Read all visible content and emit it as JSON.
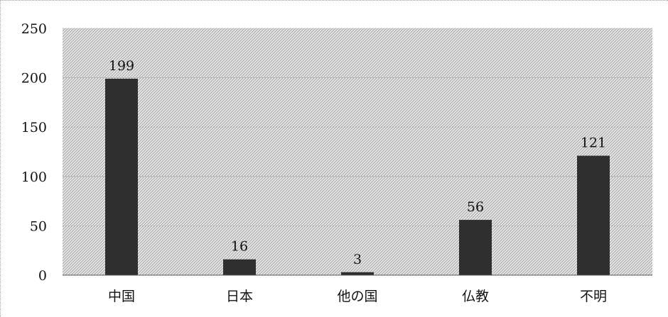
{
  "chart_data": {
    "type": "bar",
    "categories": [
      "中国",
      "日本",
      "他の国",
      "仏教",
      "不明"
    ],
    "values": [
      199,
      16,
      3,
      56,
      121
    ],
    "data_labels": [
      "199",
      "16",
      "3",
      "56",
      "121"
    ],
    "yticks": [
      "0",
      "50",
      "100",
      "150",
      "200",
      "250"
    ],
    "ylim": [
      0,
      250
    ],
    "grid": true,
    "legend": "none",
    "colors": {
      "bar": "#2f2f2f",
      "plot_bg": "#d6d6d6",
      "grid": "#9a9a9a"
    }
  }
}
